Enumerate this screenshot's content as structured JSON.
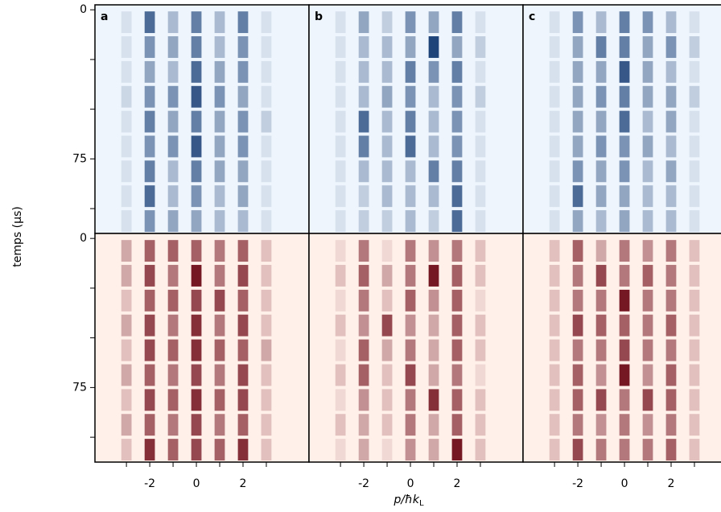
{
  "chart_data": {
    "type": "heatmap",
    "xlabel": {
      "main": "p/ħk",
      "sub": "L"
    },
    "ylabel": "temps (µs)",
    "xlim": [
      -4.35,
      4.83
    ],
    "ylim": [
      -2.5,
      112.5
    ],
    "xticks": [
      -2,
      0,
      2
    ],
    "xminor_ticks": [
      -3,
      -1,
      1,
      3
    ],
    "yticks": [
      0,
      75
    ],
    "yminor_ticks": [
      25,
      50,
      100
    ],
    "orders": [
      -3,
      -2,
      -1,
      0,
      1,
      2,
      3
    ],
    "time_bins": [
      0,
      12.5,
      25,
      37.5,
      50,
      62.5,
      75,
      87.5,
      100,
      112.5
    ],
    "panels": [
      {
        "label": "a",
        "rows": [
          {
            "colors": [
              "#eef5fc",
              "#08306b"
            ],
            "values": [
              [
                0.1,
                0.7,
                0.3,
                0.6,
                0.3,
                0.6,
                0.1
              ],
              [
                0.1,
                0.5,
                0.4,
                0.6,
                0.3,
                0.5,
                0.1
              ],
              [
                0.1,
                0.4,
                0.3,
                0.7,
                0.4,
                0.5,
                0.1
              ],
              [
                0.15,
                0.5,
                0.5,
                0.8,
                0.5,
                0.4,
                0.1
              ],
              [
                0.1,
                0.6,
                0.4,
                0.6,
                0.4,
                0.5,
                0.2
              ],
              [
                0.1,
                0.5,
                0.5,
                0.8,
                0.4,
                0.5,
                0.1
              ],
              [
                0.1,
                0.6,
                0.3,
                0.6,
                0.4,
                0.4,
                0.1
              ],
              [
                0.1,
                0.7,
                0.3,
                0.5,
                0.3,
                0.4,
                0.1
              ],
              [
                0.1,
                0.5,
                0.4,
                0.4,
                0.3,
                0.3,
                0.1
              ]
            ]
          },
          {
            "colors": [
              "#fff0ea",
              "#67000d"
            ],
            "values": [
              [
                0.3,
                0.6,
                0.6,
                0.6,
                0.5,
                0.6,
                0.2
              ],
              [
                0.3,
                0.7,
                0.5,
                0.9,
                0.5,
                0.7,
                0.2
              ],
              [
                0.2,
                0.6,
                0.6,
                0.7,
                0.7,
                0.6,
                0.2
              ],
              [
                0.3,
                0.7,
                0.5,
                0.8,
                0.5,
                0.7,
                0.2
              ],
              [
                0.2,
                0.7,
                0.6,
                0.8,
                0.6,
                0.6,
                0.3
              ],
              [
                0.3,
                0.6,
                0.5,
                0.7,
                0.5,
                0.7,
                0.2
              ],
              [
                0.2,
                0.7,
                0.6,
                0.8,
                0.6,
                0.7,
                0.2
              ],
              [
                0.3,
                0.6,
                0.5,
                0.7,
                0.5,
                0.6,
                0.2
              ],
              [
                0.2,
                0.8,
                0.6,
                0.7,
                0.6,
                0.8,
                0.2
              ]
            ]
          }
        ]
      },
      {
        "label": "b",
        "rows": [
          {
            "colors": [
              "#eef5fc",
              "#08306b"
            ],
            "values": [
              [
                0.1,
                0.4,
                0.2,
                0.5,
                0.4,
                0.6,
                0.1
              ],
              [
                0.1,
                0.3,
                0.3,
                0.4,
                0.9,
                0.4,
                0.2
              ],
              [
                0.1,
                0.3,
                0.3,
                0.6,
                0.5,
                0.6,
                0.1
              ],
              [
                0.1,
                0.3,
                0.4,
                0.5,
                0.3,
                0.5,
                0.2
              ],
              [
                0.1,
                0.7,
                0.3,
                0.6,
                0.3,
                0.5,
                0.1
              ],
              [
                0.1,
                0.6,
                0.3,
                0.7,
                0.3,
                0.5,
                0.1
              ],
              [
                0.1,
                0.3,
                0.3,
                0.3,
                0.6,
                0.6,
                0.1
              ],
              [
                0.1,
                0.2,
                0.3,
                0.3,
                0.3,
                0.7,
                0.1
              ],
              [
                0.1,
                0.2,
                0.2,
                0.3,
                0.2,
                0.7,
                0.1
              ]
            ]
          },
          {
            "colors": [
              "#fff0ea",
              "#67000d"
            ],
            "values": [
              [
                0.1,
                0.5,
                0.1,
                0.5,
                0.4,
                0.5,
                0.2
              ],
              [
                0.2,
                0.6,
                0.3,
                0.5,
                0.9,
                0.6,
                0.2
              ],
              [
                0.1,
                0.5,
                0.2,
                0.6,
                0.4,
                0.6,
                0.1
              ],
              [
                0.2,
                0.4,
                0.7,
                0.4,
                0.3,
                0.6,
                0.2
              ],
              [
                0.1,
                0.6,
                0.3,
                0.5,
                0.3,
                0.6,
                0.2
              ],
              [
                0.2,
                0.6,
                0.2,
                0.7,
                0.3,
                0.5,
                0.1
              ],
              [
                0.1,
                0.4,
                0.2,
                0.5,
                0.8,
                0.6,
                0.2
              ],
              [
                0.2,
                0.3,
                0.2,
                0.5,
                0.3,
                0.6,
                0.2
              ],
              [
                0.1,
                0.3,
                0.1,
                0.4,
                0.3,
                0.9,
                0.2
              ]
            ]
          }
        ]
      },
      {
        "label": "c",
        "rows": [
          {
            "colors": [
              "#eef5fc",
              "#08306b"
            ],
            "values": [
              [
                0.1,
                0.5,
                0.3,
                0.6,
                0.5,
                0.3,
                0.1
              ],
              [
                0.1,
                0.4,
                0.6,
                0.6,
                0.4,
                0.5,
                0.2
              ],
              [
                0.1,
                0.4,
                0.4,
                0.8,
                0.4,
                0.3,
                0.1
              ],
              [
                0.1,
                0.4,
                0.5,
                0.6,
                0.4,
                0.4,
                0.2
              ],
              [
                0.1,
                0.4,
                0.4,
                0.7,
                0.3,
                0.4,
                0.1
              ],
              [
                0.1,
                0.4,
                0.5,
                0.5,
                0.4,
                0.3,
                0.1
              ],
              [
                0.1,
                0.5,
                0.4,
                0.5,
                0.3,
                0.4,
                0.1
              ],
              [
                0.1,
                0.7,
                0.4,
                0.4,
                0.3,
                0.3,
                0.1
              ],
              [
                0.1,
                0.4,
                0.3,
                0.4,
                0.3,
                0.3,
                0.1
              ]
            ]
          },
          {
            "colors": [
              "#fff0ea",
              "#67000d"
            ],
            "values": [
              [
                0.2,
                0.6,
                0.3,
                0.5,
                0.4,
                0.5,
                0.2
              ],
              [
                0.2,
                0.5,
                0.7,
                0.5,
                0.6,
                0.5,
                0.2
              ],
              [
                0.2,
                0.5,
                0.5,
                0.9,
                0.5,
                0.5,
                0.2
              ],
              [
                0.2,
                0.7,
                0.6,
                0.6,
                0.5,
                0.6,
                0.2
              ],
              [
                0.2,
                0.5,
                0.5,
                0.7,
                0.5,
                0.5,
                0.2
              ],
              [
                0.2,
                0.6,
                0.4,
                0.9,
                0.4,
                0.6,
                0.2
              ],
              [
                0.2,
                0.6,
                0.7,
                0.5,
                0.7,
                0.6,
                0.2
              ],
              [
                0.2,
                0.5,
                0.4,
                0.5,
                0.4,
                0.5,
                0.2
              ],
              [
                0.2,
                0.7,
                0.5,
                0.5,
                0.5,
                0.6,
                0.2
              ]
            ]
          }
        ]
      }
    ]
  }
}
